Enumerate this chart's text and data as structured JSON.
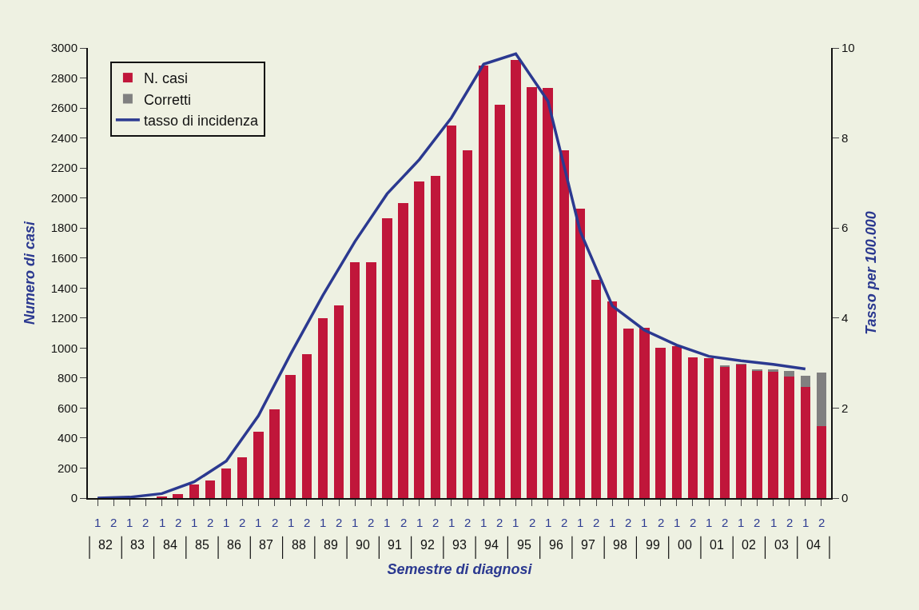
{
  "chart_data": {
    "type": "bar",
    "stacked": true,
    "xlabel": "Semestre di diagnosi",
    "ylabel": "Numero di casi",
    "y2label": "Tasso per 100.000",
    "categories": [
      "1",
      "2",
      "1",
      "2",
      "1",
      "2",
      "1",
      "2",
      "1",
      "2",
      "1",
      "2",
      "1",
      "2",
      "1",
      "2",
      "1",
      "2",
      "1",
      "2",
      "1",
      "2",
      "1",
      "2",
      "1",
      "2",
      "1",
      "2",
      "1",
      "2",
      "1",
      "2",
      "1",
      "2",
      "1",
      "2",
      "1",
      "2",
      "1",
      "2",
      "1",
      "2",
      "1",
      "2",
      "1",
      "2"
    ],
    "annotations": [
      "82",
      "83",
      "84",
      "85",
      "86",
      "87",
      "88",
      "89",
      "90",
      "91",
      "92",
      "93",
      "94",
      "95",
      "96",
      "97",
      "98",
      "99",
      "00",
      "01",
      "02",
      "03",
      "04"
    ],
    "series": [
      {
        "name": "N. casi",
        "color": "#c0163a",
        "values": [
          0,
          0,
          0,
          0,
          10,
          25,
          90,
          115,
          195,
          270,
          440,
          590,
          820,
          960,
          1200,
          1285,
          1570,
          1570,
          1865,
          1965,
          2110,
          2150,
          2485,
          2320,
          2885,
          2620,
          2920,
          2740,
          2735,
          2320,
          1930,
          1455,
          1310,
          1130,
          1135,
          1000,
          1010,
          940,
          935,
          875,
          890,
          850,
          842,
          808,
          742,
          480
        ]
      },
      {
        "name": "Corretti",
        "color": "#808080",
        "values": [
          0,
          0,
          0,
          0,
          0,
          0,
          0,
          0,
          0,
          0,
          0,
          0,
          0,
          0,
          0,
          0,
          0,
          0,
          0,
          0,
          0,
          0,
          0,
          0,
          0,
          0,
          0,
          0,
          0,
          0,
          0,
          0,
          0,
          0,
          0,
          0,
          0,
          0,
          0,
          5,
          5,
          5,
          18,
          40,
          73,
          355
        ]
      },
      {
        "name": "tasso di incidenza",
        "type": "line",
        "axis": "y2",
        "color": "#2b3990",
        "values": [
          0.0,
          null,
          0.02,
          null,
          0.1,
          null,
          0.36,
          null,
          0.82,
          null,
          1.83,
          null,
          3.2,
          null,
          4.5,
          null,
          5.7,
          null,
          6.76,
          null,
          7.52,
          null,
          8.45,
          null,
          9.64,
          null,
          9.87,
          null,
          8.82,
          null,
          5.93,
          null,
          4.27,
          null,
          3.73,
          null,
          3.4,
          null,
          3.15,
          null,
          3.05,
          null,
          2.97,
          null,
          2.87,
          null
        ]
      }
    ],
    "ylim": [
      0,
      3000
    ],
    "yticks": [
      0,
      200,
      400,
      600,
      800,
      1000,
      1200,
      1400,
      1600,
      1800,
      2000,
      2200,
      2400,
      2600,
      2800,
      3000
    ],
    "y2lim": [
      0,
      10
    ],
    "y2ticks": [
      0,
      2,
      4,
      6,
      8,
      10
    ],
    "grid": false,
    "legend": "top left",
    "marker": "none"
  }
}
